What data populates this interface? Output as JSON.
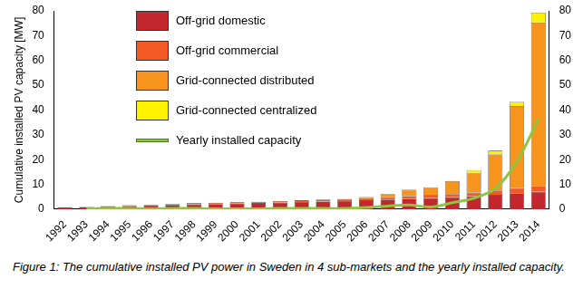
{
  "chart_data": {
    "type": "bar",
    "y_label": "Cumulative installed PV capacity [MW]",
    "caption": "Figure 1:  The cumulative installed PV power in Sweden in 4 sub-markets and the yearly installed capacity.",
    "categories": [
      "1992",
      "1993",
      "1994",
      "1995",
      "1996",
      "1997",
      "1998",
      "1999",
      "2000",
      "2001",
      "2002",
      "2003",
      "2004",
      "2005",
      "2006",
      "2007",
      "2008",
      "2009",
      "2010",
      "2011",
      "2012",
      "2013",
      "2014"
    ],
    "series": [
      {
        "name": "Off-grid domestic",
        "color": "#c1272d",
        "values": [
          0.7,
          0.9,
          1.1,
          1.3,
          1.5,
          1.7,
          1.9,
          2.1,
          2.3,
          2.5,
          2.7,
          2.9,
          3.1,
          3.3,
          3.6,
          3.9,
          4.2,
          4.5,
          4.8,
          5.2,
          5.8,
          6.5,
          7.0
        ]
      },
      {
        "name": "Off-grid commercial",
        "color": "#f15a24",
        "values": [
          0.1,
          0.1,
          0.2,
          0.3,
          0.3,
          0.4,
          0.5,
          0.5,
          0.5,
          0.5,
          0.6,
          0.7,
          0.8,
          0.8,
          0.9,
          1.0,
          1.1,
          1.2,
          1.3,
          1.5,
          1.8,
          2.0,
          2.3
        ]
      },
      {
        "name": "Grid-connected distributed",
        "color": "#f7941d",
        "values": [
          0,
          0,
          0,
          0,
          0,
          0,
          0,
          0,
          0,
          0,
          0,
          0,
          0,
          0.1,
          0.4,
          1.2,
          2.5,
          3.0,
          5.2,
          8.0,
          14.5,
          33.0,
          66.0
        ]
      },
      {
        "name": "Grid-connected centralized",
        "color": "#fff200",
        "values": [
          0,
          0,
          0,
          0,
          0,
          0,
          0,
          0,
          0,
          0,
          0,
          0,
          0,
          0,
          0,
          0.1,
          0.1,
          0.1,
          0.1,
          1.1,
          1.5,
          1.8,
          4.0
        ]
      },
      {
        "name": "Yearly installed capacity",
        "color": "#8dc63f",
        "type": "line",
        "values": [
          null,
          0.2,
          0.3,
          0.3,
          0.2,
          0.3,
          0.3,
          0.2,
          0.2,
          0.2,
          0.3,
          0.3,
          0.3,
          0.3,
          0.7,
          1.3,
          1.7,
          0.9,
          2.6,
          4.4,
          8.3,
          19.2,
          36.2
        ]
      }
    ],
    "ylim": [
      0,
      80
    ],
    "yticks": [
      0,
      10,
      20,
      30,
      40,
      50,
      60,
      70,
      80
    ],
    "y2lim": [
      0,
      80
    ],
    "y2ticks": [
      0,
      10,
      20,
      30,
      40,
      50,
      60,
      70,
      80
    ],
    "stacked": true,
    "grid": false,
    "legend": "upper left"
  }
}
